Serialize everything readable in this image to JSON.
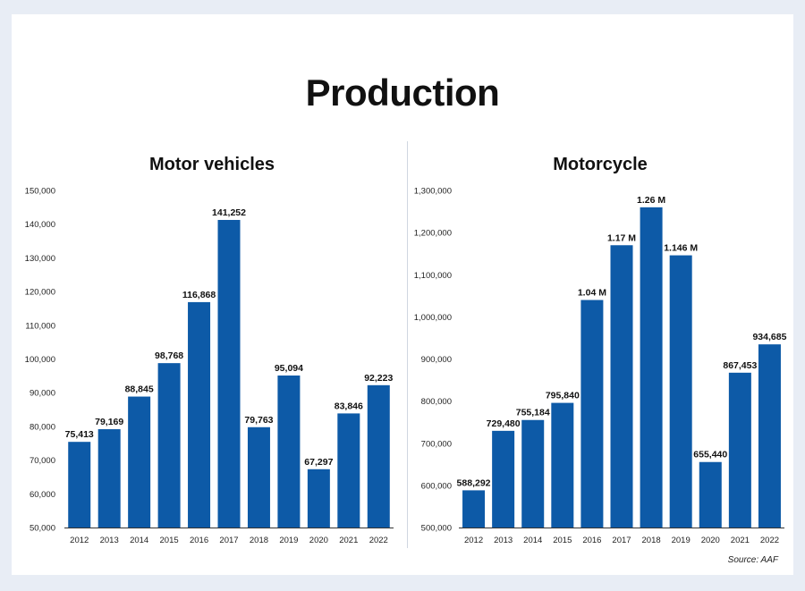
{
  "title": "Production",
  "source": "Source: AAF",
  "colors": {
    "bar": "#0d5aa7",
    "background": "#e8edf5",
    "panel": "#ffffff"
  },
  "chart_data": [
    {
      "type": "bar",
      "title": "Motor vehicles",
      "categories": [
        "2012",
        "2013",
        "2014",
        "2015",
        "2016",
        "2017",
        "2018",
        "2019",
        "2020",
        "2021",
        "2022"
      ],
      "values": [
        75413,
        79169,
        88845,
        98768,
        116868,
        141252,
        79763,
        95094,
        67297,
        83846,
        92223
      ],
      "value_labels": [
        "75,413",
        "79,169",
        "88,845",
        "98,768",
        "116,868",
        "141,252",
        "79,763",
        "95,094",
        "67,297",
        "83,846",
        "92,223"
      ],
      "ylim": [
        50000,
        150000
      ],
      "yticks": [
        "50,000",
        "60,000",
        "70,000",
        "80,000",
        "90,000",
        "100,000",
        "110,000",
        "120,000",
        "130,000",
        "140,000",
        "150,000"
      ],
      "xlabel": "",
      "ylabel": "",
      "grid": false
    },
    {
      "type": "bar",
      "title": "Motorcycle",
      "categories": [
        "2012",
        "2013",
        "2014",
        "2015",
        "2016",
        "2017",
        "2018",
        "2019",
        "2020",
        "2021",
        "2022"
      ],
      "values": [
        588292,
        729480,
        755184,
        795840,
        1040000,
        1170000,
        1260000,
        1146000,
        655440,
        867453,
        934685
      ],
      "value_labels": [
        "588,292",
        "729,480",
        "755,184",
        "795,840",
        "1.04 M",
        "1.17 M",
        "1.26 M",
        "1.146 M",
        "655,440",
        "867,453",
        "934,685"
      ],
      "ylim": [
        500000,
        1300000
      ],
      "yticks": [
        "500,000",
        "600,000",
        "700,000",
        "800,000",
        "900,000",
        "1,000,000",
        "1,100,000",
        "1,200,000",
        "1,300,000"
      ],
      "xlabel": "",
      "ylabel": "",
      "grid": false
    }
  ]
}
